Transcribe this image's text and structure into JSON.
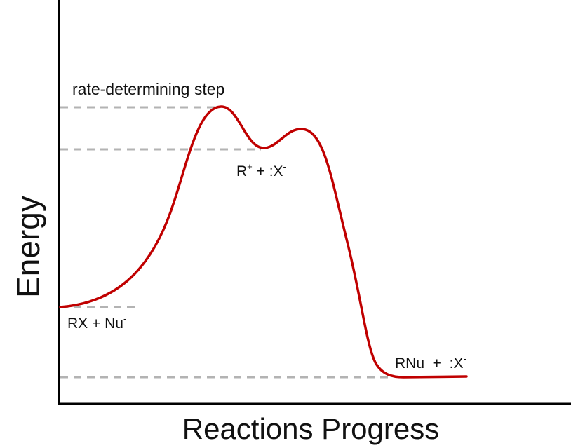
{
  "diagram": {
    "type": "energy-profile",
    "axes": {
      "y_label": "Energy",
      "x_label": "Reactions Progress"
    },
    "annotations": {
      "rate_step": "rate-determining step",
      "reactants": {
        "main": "RX + Nu",
        "sup": "-"
      },
      "intermediate": {
        "r": "R",
        "r_sup": "+",
        "mid": " + :X",
        "x_sup": "-"
      },
      "products": {
        "main": "RNu  +  :X",
        "sup": "-"
      }
    },
    "colors": {
      "curve": "#c00000",
      "axis": "#000000",
      "guide": "#b3b3b3"
    }
  }
}
